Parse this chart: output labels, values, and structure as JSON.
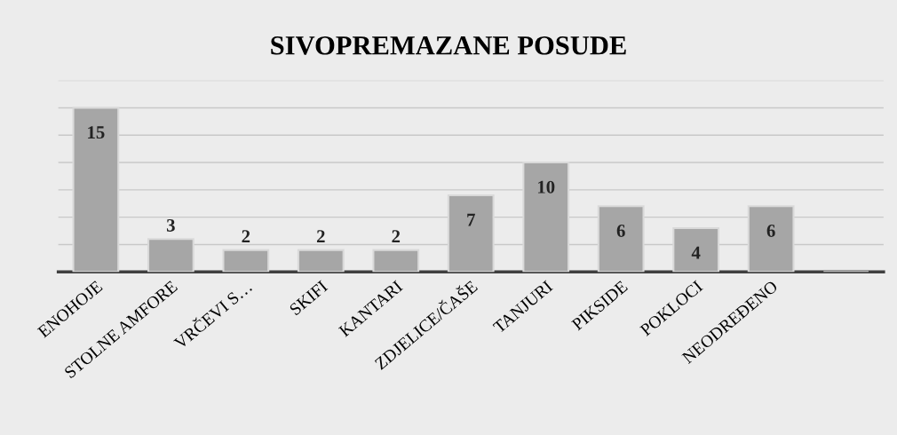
{
  "chart_data": {
    "type": "bar",
    "title": "SIVOPREMAZANE POSUDE",
    "categories": [
      "ENOHOJE",
      "STOLNE AMFORE",
      "VRČEVI S…",
      "SKIFI",
      "KANTARI",
      "ZDJELICE/ČAŠE",
      "TANJURI",
      "PIKSIDE",
      "POKLOCI",
      "NEODREĐENO",
      null
    ],
    "values": [
      15,
      3,
      2,
      2,
      2,
      7,
      10,
      6,
      4,
      6,
      null
    ],
    "color": "#a6a6a6",
    "data_labels": true,
    "grid": "y",
    "tick_labels": "x",
    "ylim": [
      0,
      17.5
    ],
    "yticks": [
      {
        "value": 0,
        "label": null
      },
      {
        "value": 2.5,
        "label": null
      },
      {
        "value": 5,
        "label": null
      },
      {
        "value": 7.5,
        "label": null
      },
      {
        "value": 10,
        "label": null
      },
      {
        "value": 12.5,
        "label": null
      },
      {
        "value": 15,
        "label": null
      },
      {
        "value": 17.5,
        "label": null
      }
    ]
  }
}
